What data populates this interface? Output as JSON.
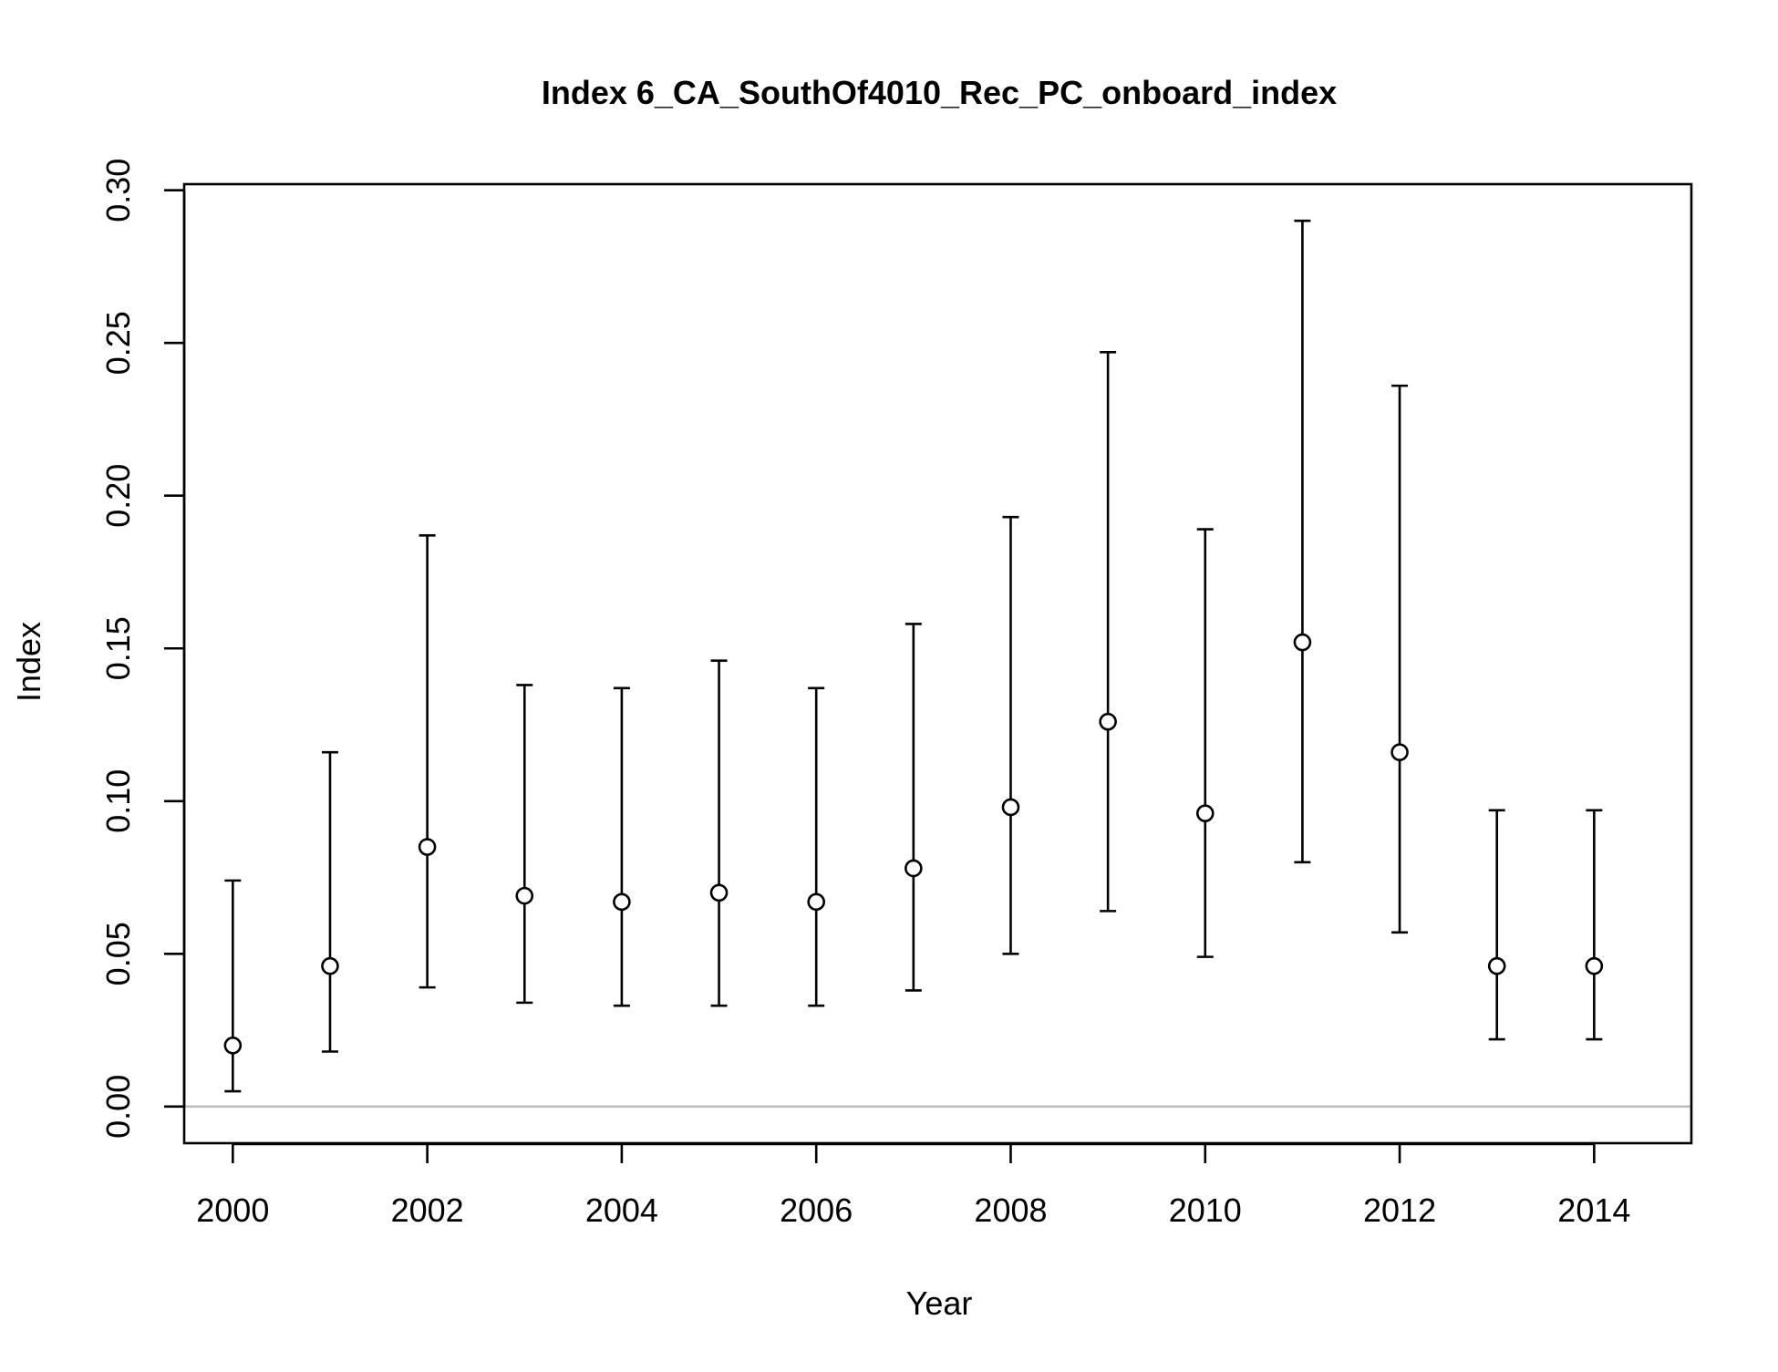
{
  "chart_data": {
    "type": "scatter",
    "title": "Index 6_CA_SouthOf4010_Rec_PC_onboard_index",
    "xlabel": "Year",
    "ylabel": "Index",
    "xlim": [
      1999.5,
      2015.0
    ],
    "ylim": [
      -0.012,
      0.302
    ],
    "x_ticks": [
      "2000",
      "2002",
      "2004",
      "2006",
      "2008",
      "2010",
      "2012",
      "2014"
    ],
    "y_ticks": [
      "0.00",
      "0.05",
      "0.10",
      "0.15",
      "0.20",
      "0.25",
      "0.30"
    ],
    "reference_line": 0.0,
    "grid": false,
    "series": [
      {
        "x": [
          2000,
          2001,
          2002,
          2003,
          2004,
          2005,
          2006,
          2007,
          2008,
          2009,
          2010,
          2011,
          2012,
          2013,
          2014
        ],
        "y": [
          0.02,
          0.046,
          0.085,
          0.069,
          0.067,
          0.07,
          0.067,
          0.078,
          0.098,
          0.126,
          0.096,
          0.152,
          0.116,
          0.046,
          0.046
        ],
        "lower": [
          0.005,
          0.018,
          0.039,
          0.034,
          0.033,
          0.033,
          0.033,
          0.038,
          0.05,
          0.064,
          0.049,
          0.08,
          0.057,
          0.022,
          0.022
        ],
        "upper": [
          0.074,
          0.116,
          0.187,
          0.138,
          0.137,
          0.146,
          0.137,
          0.158,
          0.193,
          0.247,
          0.189,
          0.29,
          0.236,
          0.097,
          0.097
        ]
      }
    ],
    "colors": {
      "points": "#000000",
      "error_bars": "#000000",
      "reference_line": "#bebebe",
      "background": "#ffffff"
    }
  }
}
